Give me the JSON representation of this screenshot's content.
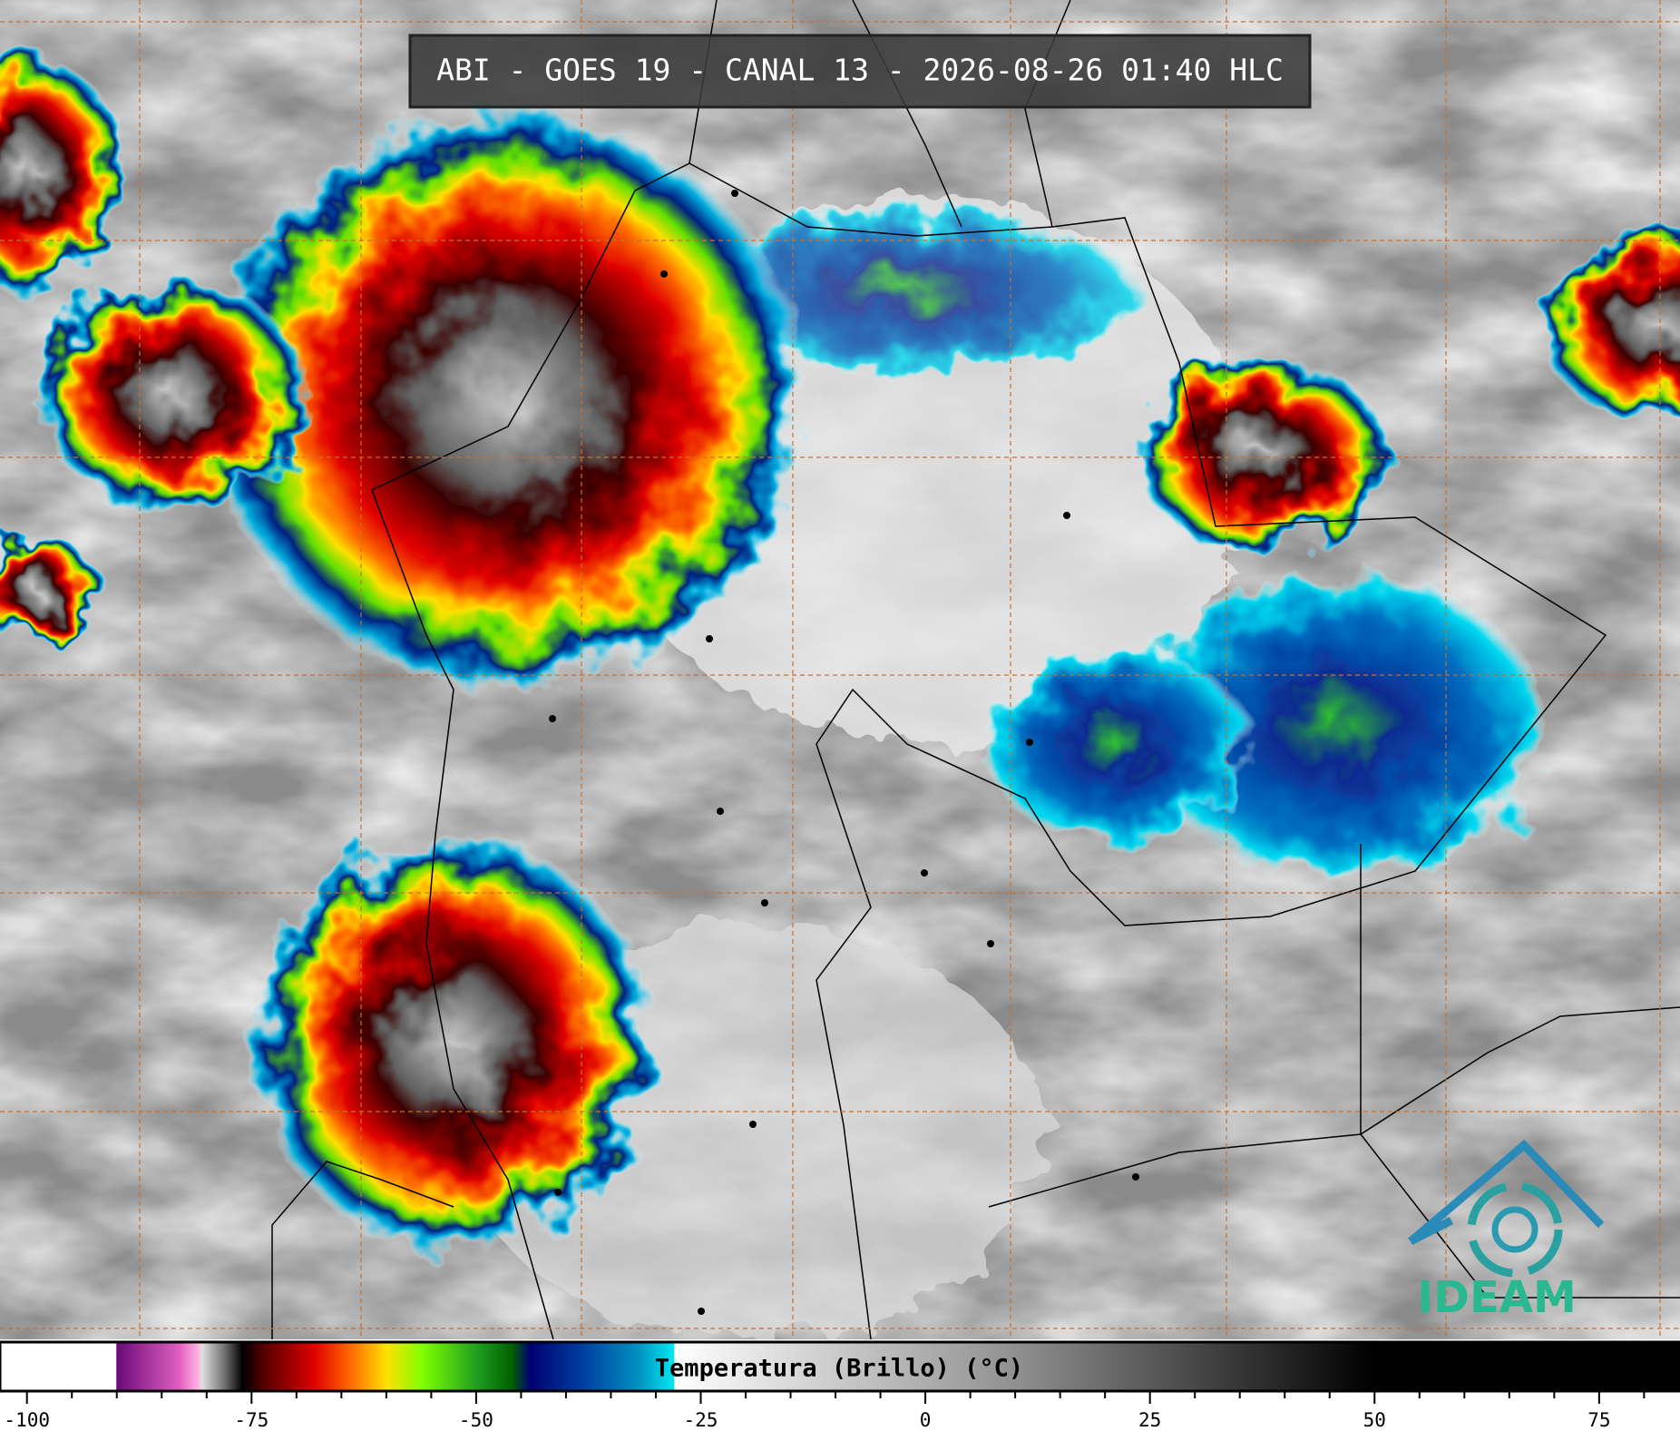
{
  "title": "ABI - GOES 19 - CANAL 13 - 2026-08-26 01:40 HLC",
  "colorbar": {
    "label": "Temperatura (Brillo) (°C)",
    "min": -103,
    "max": 84,
    "ticks": [
      -100,
      -75,
      -50,
      -25,
      0,
      25,
      50,
      75
    ],
    "minor_step": 5,
    "stops": [
      {
        "value": -103,
        "color": "#ffffff"
      },
      {
        "value": -90.1,
        "color": "#ffffff"
      },
      {
        "value": -90,
        "color": "#6a0a7a"
      },
      {
        "value": -83,
        "color": "#e060c0"
      },
      {
        "value": -81,
        "color": "#ffb0e0"
      },
      {
        "value": -80.5,
        "color": "#e0e0e0"
      },
      {
        "value": -78,
        "color": "#707070"
      },
      {
        "value": -76,
        "color": "#000000"
      },
      {
        "value": -74,
        "color": "#4a0000"
      },
      {
        "value": -68,
        "color": "#e00000"
      },
      {
        "value": -64,
        "color": "#ff6a00"
      },
      {
        "value": -60,
        "color": "#ffe000"
      },
      {
        "value": -56,
        "color": "#80ff00"
      },
      {
        "value": -50,
        "color": "#20a020"
      },
      {
        "value": -46,
        "color": "#006000"
      },
      {
        "value": -44,
        "color": "#000070"
      },
      {
        "value": -38,
        "color": "#0040a0"
      },
      {
        "value": -32,
        "color": "#0090c0"
      },
      {
        "value": -28,
        "color": "#00e8f0"
      },
      {
        "value": -27.9,
        "color": "#ffffff"
      },
      {
        "value": 10,
        "color": "#909090"
      },
      {
        "value": 50,
        "color": "#000000"
      },
      {
        "value": 84,
        "color": "#000000"
      }
    ]
  },
  "logo": "IDEAM"
}
